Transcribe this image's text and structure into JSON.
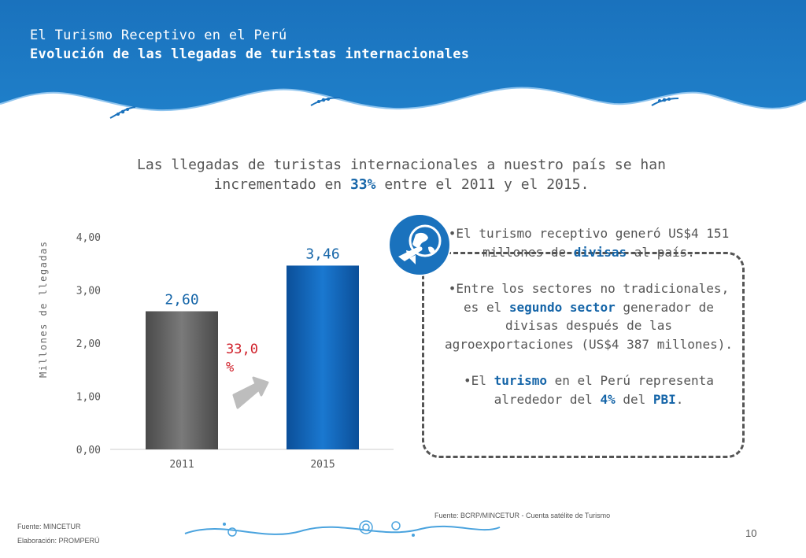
{
  "header": {
    "title": "El Turismo Receptivo en el Perú",
    "subtitle": "Evolución de las llegadas de turistas internacionales"
  },
  "intro": {
    "line1": "Las llegadas de turistas internacionales a nuestro país se han",
    "line2_prefix": "incrementado en ",
    "line2_highlight": "33%",
    "line2_suffix": " entre el 2011 y el 2015."
  },
  "chart_data": {
    "type": "bar",
    "categories": [
      "2011",
      "2015"
    ],
    "values": [
      2.6,
      3.46
    ],
    "data_labels": [
      "2,60",
      "3,46"
    ],
    "ylabel": "Millones de llegadas",
    "ylim": [
      0,
      4
    ],
    "y_ticks": [
      "0,00",
      "1,00",
      "2,00",
      "3,00",
      "4,00"
    ],
    "growth_label": "33,0 %",
    "grid": false
  },
  "bullets": {
    "b1_pre": "•El turismo receptivo generó US$4 151 millones de ",
    "b1_hl": "divisas",
    "b1_post": " al país.",
    "b2_pre": "•Entre los sectores no tradicionales, es  el ",
    "b2_hl": "segundo sector",
    "b2_post": "  generador de divisas después de las agroexportaciones (US$4 387 millones).",
    "b3_pre": "•El ",
    "b3_hl1": "turismo",
    "b3_mid": " en el Perú representa alrededor del ",
    "b3_hl2": "4%",
    "b3_mid2": " del ",
    "b3_hl3": "PBI",
    "b3_post": "."
  },
  "footer": {
    "source_right": "Fuente: BCRP/MINCETUR - Cuenta satélite de Turismo",
    "source_left": "Fuente: MINCETUR",
    "elaboration": "Elaboración: PROMPERÚ",
    "page_number": "10"
  },
  "colors": {
    "header_blue": "#1a72bd",
    "bar_2011": "#6e6e6e",
    "bar_2015": "#1464b4",
    "label_blue": "#1565a8",
    "growth_red": "#d0202a"
  }
}
